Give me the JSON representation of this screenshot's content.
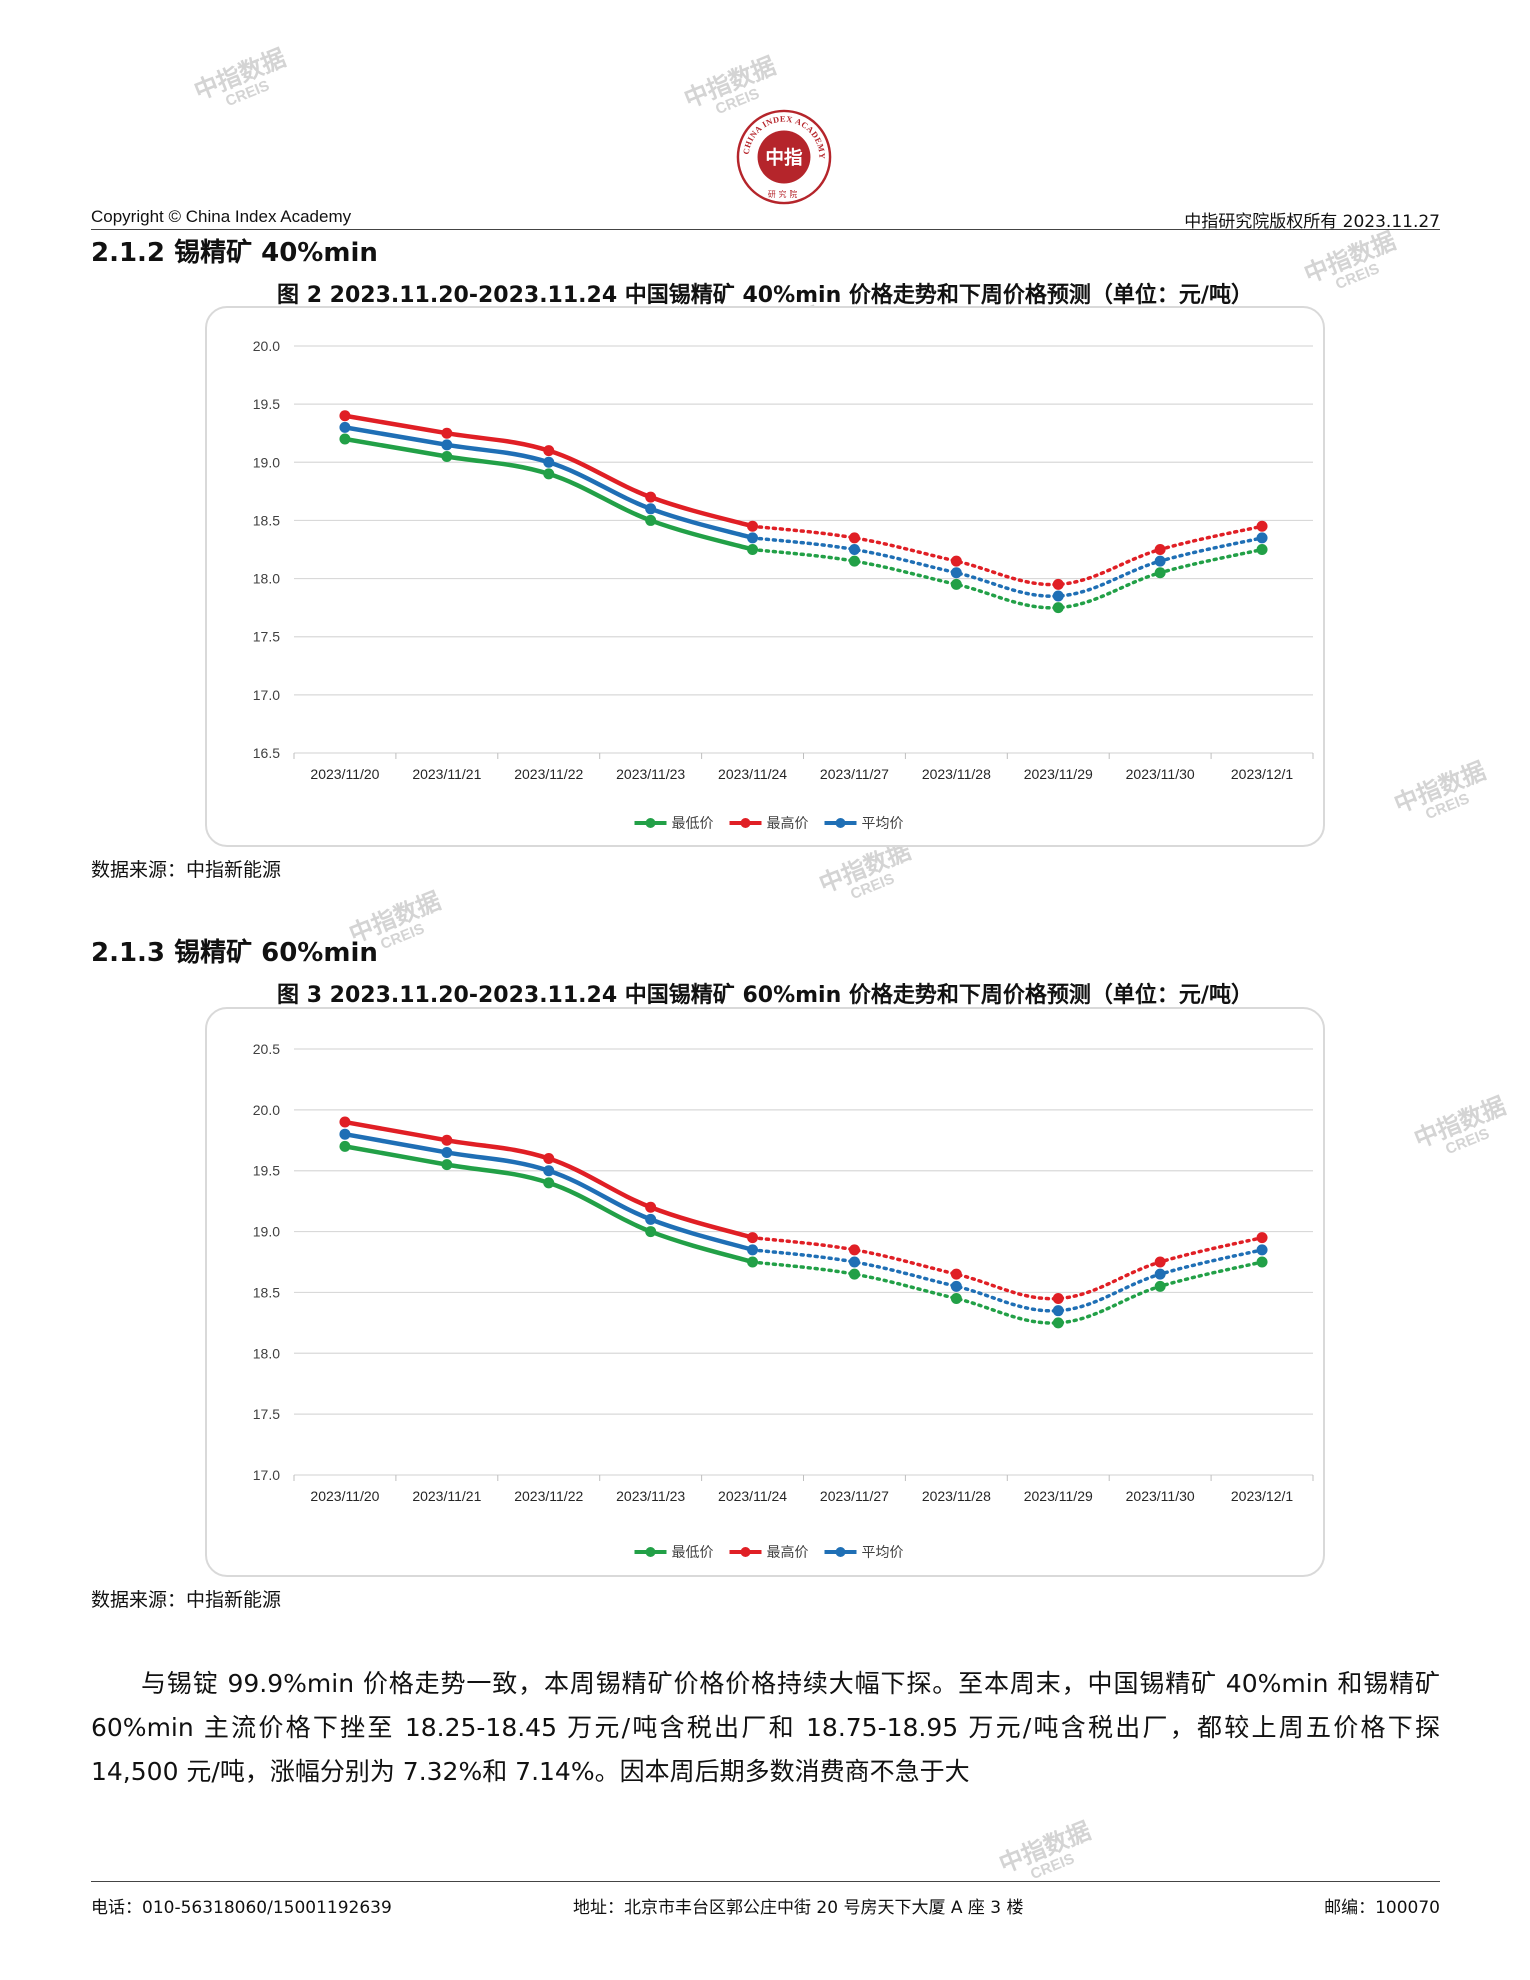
{
  "header": {
    "copyright": "Copyright © China Index Academy",
    "rights": "中指研究院版权所有 2023.11.27",
    "seal": {
      "ring_text": "CHINA INDEX ACADEMY",
      "center_text": "中指",
      "bottom_text": "研究院"
    }
  },
  "watermark": {
    "line1": "中指数据",
    "line2": "CREIS"
  },
  "sections": [
    {
      "title": "2.1.2 锡精矿 40%min",
      "figure_title": "图 2 2023.11.20-2023.11.24 中国锡精矿 40%min 价格走势和下周价格预测（单位：元/吨）",
      "source": "数据来源：中指新能源"
    },
    {
      "title": "2.1.3 锡精矿 60%min",
      "figure_title": "图 3 2023.11.20-2023.11.24 中国锡精矿 60%min 价格走势和下周价格预测（单位：元/吨）",
      "source": "数据来源：中指新能源"
    }
  ],
  "chart_data": [
    {
      "type": "line",
      "categories": [
        "2023/11/20",
        "2023/11/21",
        "2023/11/22",
        "2023/11/23",
        "2023/11/24",
        "2023/11/27",
        "2023/11/28",
        "2023/11/29",
        "2023/11/30",
        "2023/12/1"
      ],
      "ylim": [
        16.5,
        20.0
      ],
      "yticks": [
        "20.0",
        "19.5",
        "19.0",
        "18.5",
        "18.0",
        "17.5",
        "17.0",
        "16.5"
      ],
      "grid": true,
      "legend_position": "bottom",
      "actual_points": 5,
      "series": [
        {
          "name": "最低价",
          "color": "#22a047",
          "values": [
            19.2,
            19.05,
            18.9,
            18.5,
            18.25,
            18.15,
            17.95,
            17.75,
            18.05,
            18.25
          ]
        },
        {
          "name": "最高价",
          "color": "#e01f25",
          "values": [
            19.4,
            19.25,
            19.1,
            18.7,
            18.45,
            18.35,
            18.15,
            17.95,
            18.25,
            18.45
          ]
        },
        {
          "name": "平均价",
          "color": "#1f6fb5",
          "values": [
            19.3,
            19.15,
            19.0,
            18.6,
            18.35,
            18.25,
            18.05,
            17.85,
            18.15,
            18.35
          ]
        }
      ]
    },
    {
      "type": "line",
      "categories": [
        "2023/11/20",
        "2023/11/21",
        "2023/11/22",
        "2023/11/23",
        "2023/11/24",
        "2023/11/27",
        "2023/11/28",
        "2023/11/29",
        "2023/11/30",
        "2023/12/1"
      ],
      "ylim": [
        17.0,
        20.5
      ],
      "yticks": [
        "20.5",
        "20.0",
        "19.5",
        "19.0",
        "18.5",
        "18.0",
        "17.5",
        "17.0"
      ],
      "grid": true,
      "legend_position": "bottom",
      "actual_points": 5,
      "series": [
        {
          "name": "最低价",
          "color": "#22a047",
          "values": [
            19.7,
            19.55,
            19.4,
            19.0,
            18.75,
            18.65,
            18.45,
            18.25,
            18.55,
            18.75
          ]
        },
        {
          "name": "最高价",
          "color": "#e01f25",
          "values": [
            19.9,
            19.75,
            19.6,
            19.2,
            18.95,
            18.85,
            18.65,
            18.45,
            18.75,
            18.95
          ]
        },
        {
          "name": "平均价",
          "color": "#1f6fb5",
          "values": [
            19.8,
            19.65,
            19.5,
            19.1,
            18.85,
            18.75,
            18.55,
            18.35,
            18.65,
            18.85
          ]
        }
      ]
    }
  ],
  "body": {
    "paragraph": "与锡锭 99.9%min 价格走势一致，本周锡精矿价格价格持续大幅下探。至本周末，中国锡精矿 40%min 和锡精矿 60%min 主流价格下挫至 18.25-18.45 万元/吨含税出厂和 18.75-18.95 万元/吨含税出厂，都较上周五价格下探 14,500 元/吨，涨幅分别为 7.32%和 7.14%。因本周后期多数消费商不急于大"
  },
  "footer": {
    "phone": "电话：010-56318060/15001192639",
    "address": "地址：北京市丰台区郭公庄中街 20 号房天下大厦 A 座 3 楼",
    "zip": "邮编：100070"
  }
}
